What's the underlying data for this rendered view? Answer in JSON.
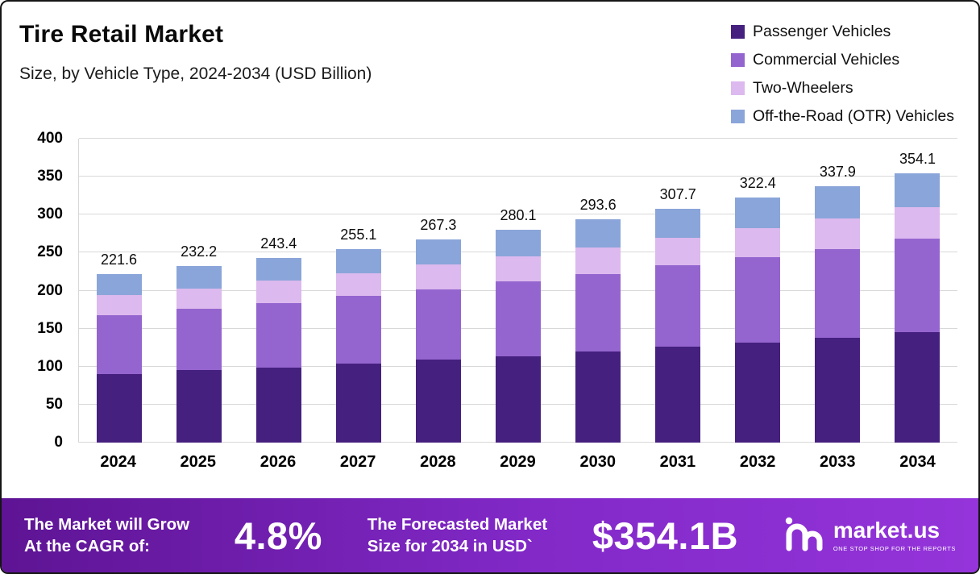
{
  "title": "Tire Retail Market",
  "subtitle": "Size, by Vehicle Type, 2024-2034 (USD Billion)",
  "legend": [
    {
      "label": "Passenger Vehicles",
      "color": "#45207f"
    },
    {
      "label": "Commercial Vehicles",
      "color": "#9565cf"
    },
    {
      "label": "Two-Wheelers",
      "color": "#dcb9ee"
    },
    {
      "label": "Off-the-Road (OTR) Vehicles",
      "color": "#8aa5d9"
    }
  ],
  "chart_data": {
    "type": "bar",
    "stacked": true,
    "title": "Tire Retail Market Size, by Vehicle Type, 2024-2034 (USD Billion)",
    "categories": [
      "2024",
      "2025",
      "2026",
      "2027",
      "2028",
      "2029",
      "2030",
      "2031",
      "2032",
      "2033",
      "2034"
    ],
    "totals": [
      221.6,
      232.2,
      243.4,
      255.1,
      267.3,
      280.1,
      293.6,
      307.7,
      322.4,
      337.9,
      354.1
    ],
    "series": [
      {
        "name": "Passenger Vehicles",
        "color": "#45207f",
        "values": [
          90,
          95,
          99,
          104,
          109,
          114,
          120,
          126,
          132,
          138,
          145
        ]
      },
      {
        "name": "Commercial Vehicles",
        "color": "#9565cf",
        "values": [
          78,
          81,
          85,
          89,
          93,
          98,
          102,
          107,
          112,
          117,
          123
        ]
      },
      {
        "name": "Two-Wheelers",
        "color": "#dcb9ee",
        "values": [
          26,
          27,
          29,
          30,
          32,
          33,
          35,
          37,
          38,
          40,
          42
        ]
      },
      {
        "name": "Off-the-Road (OTR) Vehicles",
        "color": "#8aa5d9",
        "values": [
          27.6,
          29.2,
          30.4,
          32.1,
          33.3,
          35.1,
          36.6,
          37.7,
          40.4,
          42.9,
          44.1
        ]
      }
    ],
    "xlabel": "",
    "ylabel": "",
    "ylim": [
      0,
      400
    ],
    "yticks": [
      0,
      50,
      100,
      150,
      200,
      250,
      300,
      350,
      400
    ],
    "grid": true,
    "legend_position": "top-right"
  },
  "banner": {
    "left_line1": "The Market will Grow",
    "left_line2": "At the CAGR of:",
    "cagr": "4.8%",
    "mid_line1": "The Forecasted Market",
    "mid_line2": "Size for 2034 in USD`",
    "forecast_value": "$354.1B",
    "brand": "market.us",
    "brand_tagline": "ONE STOP SHOP FOR THE REPORTS"
  }
}
